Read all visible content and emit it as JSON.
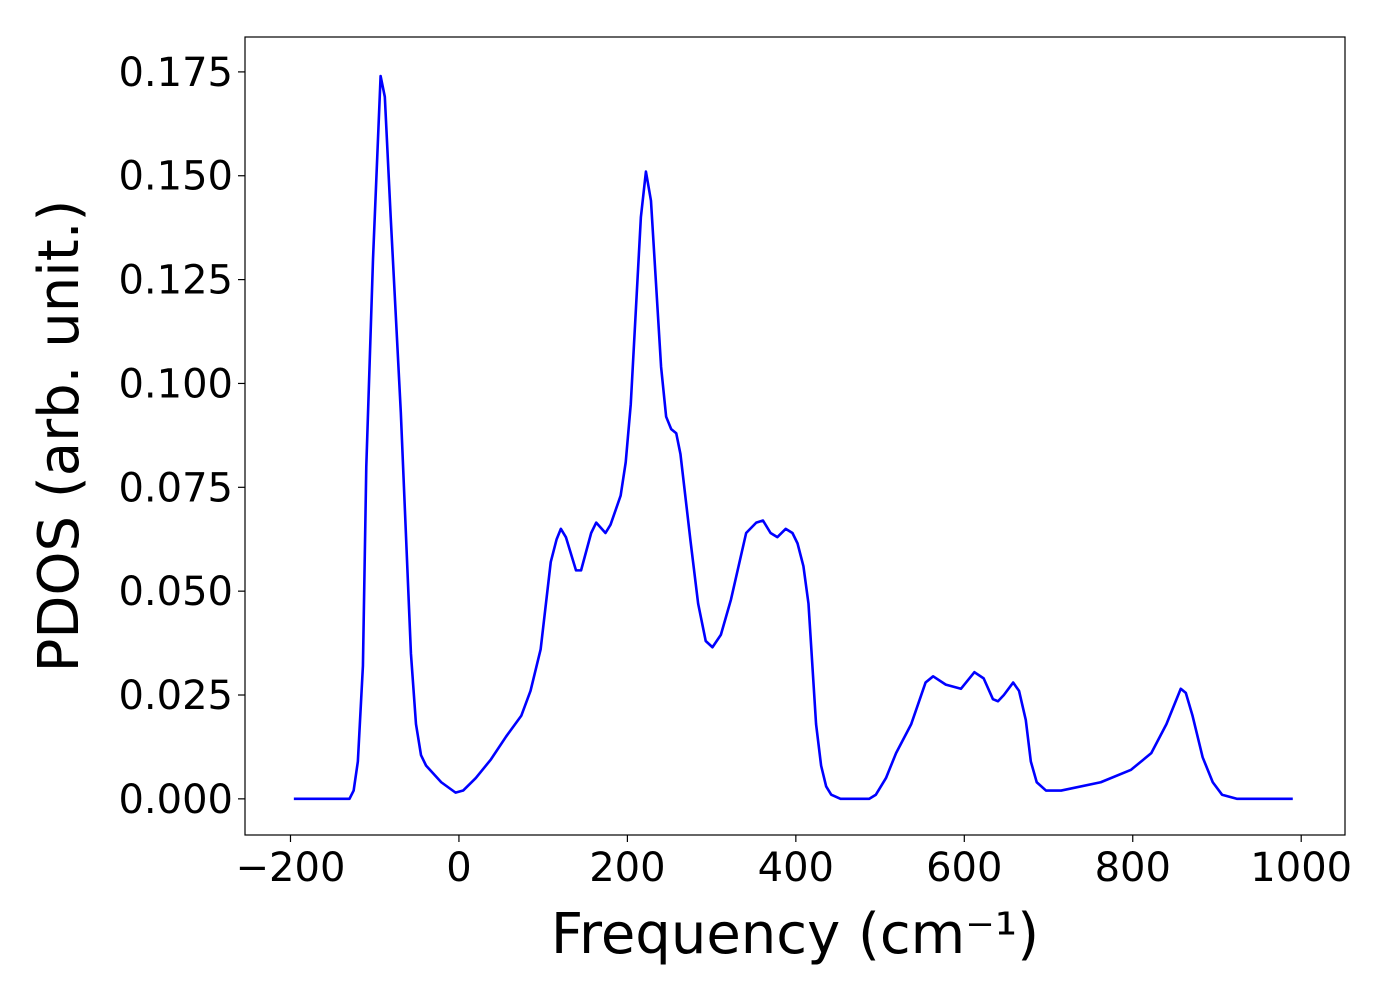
{
  "chart_data": {
    "type": "line",
    "xlabel": "Frequency (cm⁻¹)",
    "ylabel": "PDOS (arb. unit.)",
    "x": [
      -196,
      -130,
      -125,
      -120,
      -114,
      -110,
      -102,
      -93,
      -88,
      -81,
      -69,
      -57,
      -51,
      -45,
      -39,
      -21,
      -4,
      5,
      20,
      38,
      56,
      74,
      85,
      97,
      109,
      116,
      121,
      127,
      139,
      145,
      157,
      163,
      174,
      180,
      192,
      198,
      204,
      216,
      222,
      228,
      240,
      246,
      252,
      258,
      263,
      275,
      284,
      293,
      301,
      311,
      323,
      341,
      353,
      361,
      370,
      378,
      388,
      396,
      402,
      409,
      415,
      424,
      430,
      436,
      442,
      453,
      487,
      495,
      507,
      519,
      537,
      554,
      563,
      578,
      596,
      612,
      623,
      634,
      640,
      647,
      658,
      665,
      673,
      679,
      686,
      697,
      715,
      762,
      798,
      822,
      840,
      854,
      857,
      863,
      871,
      883,
      895,
      906,
      924,
      990
    ],
    "series": [
      {
        "name": "PDOS",
        "color": "#0000ff",
        "values": [
          0,
          0,
          0.002,
          0.009,
          0.032,
          0.08,
          0.13,
          0.174,
          0.169,
          0.14,
          0.093,
          0.035,
          0.018,
          0.0105,
          0.008,
          0.004,
          0.0015,
          0.002,
          0.005,
          0.0095,
          0.015,
          0.02,
          0.026,
          0.036,
          0.057,
          0.0625,
          0.065,
          0.063,
          0.055,
          0.055,
          0.064,
          0.0665,
          0.064,
          0.066,
          0.073,
          0.081,
          0.095,
          0.14,
          0.151,
          0.144,
          0.104,
          0.092,
          0.089,
          0.088,
          0.083,
          0.062,
          0.047,
          0.038,
          0.0365,
          0.0395,
          0.048,
          0.064,
          0.0665,
          0.067,
          0.064,
          0.063,
          0.065,
          0.064,
          0.0615,
          0.056,
          0.047,
          0.018,
          0.008,
          0.003,
          0.001,
          0,
          0,
          0.001,
          0.005,
          0.011,
          0.018,
          0.028,
          0.0295,
          0.0275,
          0.0265,
          0.0305,
          0.029,
          0.024,
          0.0235,
          0.025,
          0.028,
          0.026,
          0.019,
          0.009,
          0.004,
          0.002,
          0.002,
          0.004,
          0.007,
          0.011,
          0.018,
          0.025,
          0.0265,
          0.0255,
          0.02,
          0.01,
          0.004,
          0.001,
          0,
          0
        ]
      }
    ],
    "xlim": [
      -254,
      1052
    ],
    "ylim": [
      -0.0087,
      0.1834
    ],
    "xticks": [
      {
        "value": -200,
        "label": "−200"
      },
      0,
      200,
      400,
      600,
      800,
      1000
    ],
    "yticks": [
      {
        "value": 0,
        "label": "0.000"
      },
      {
        "value": 0.025,
        "label": "0.025"
      },
      {
        "value": 0.05,
        "label": "0.050"
      },
      {
        "value": 0.075,
        "label": "0.075"
      },
      {
        "value": 0.1,
        "label": "0.100"
      },
      {
        "value": 0.125,
        "label": "0.125"
      },
      {
        "value": 0.15,
        "label": "0.150"
      },
      {
        "value": 0.175,
        "label": "0.175"
      }
    ],
    "grid": false
  }
}
